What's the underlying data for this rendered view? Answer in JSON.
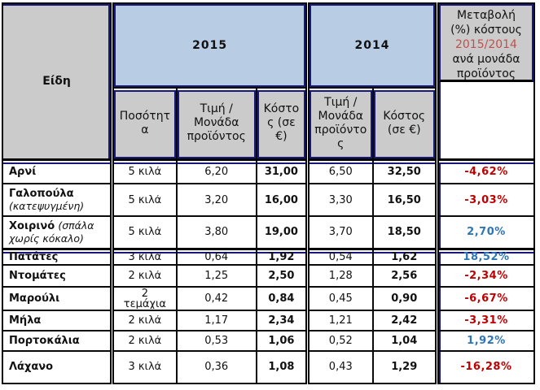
{
  "table": {
    "headers": {
      "items": "Είδη",
      "year_2015": "2015",
      "year_2014": "2014",
      "quantity": "Ποσότητα",
      "price_per_unit": "Τιμή / Μονάδα προϊόντος",
      "cost_eur": "Κόστος (σε €)",
      "change_prefix": "Μεταβολή (%) κόστους",
      "change_ratio": "2015/2014",
      "change_suffix": "ανά μονάδα προϊόντος"
    },
    "groups": [
      {
        "rows": [
          {
            "name": "Αρνί",
            "note": "",
            "qty": "5 κιλά",
            "price_2015": "6,20",
            "cost_2015": "31,00",
            "price_2014": "6,50",
            "cost_2014": "32,50",
            "change": "-4,62%",
            "trend": "negative"
          },
          {
            "name": "Γαλοπούλα",
            "note": "(κατεψυγμένη)",
            "qty": "5 κιλά",
            "price_2015": "3,20",
            "cost_2015": "16,00",
            "price_2014": "3,30",
            "cost_2014": "16,50",
            "change": "-3,03%",
            "trend": "negative"
          },
          {
            "name": "Χοιρινό",
            "note": "(σπάλα χωρίς κόκαλο)",
            "qty": "5 κιλά",
            "price_2015": "3,80",
            "cost_2015": "19,00",
            "price_2014": "3,70",
            "cost_2014": "18,50",
            "change": "2,70%",
            "trend": "positive"
          }
        ]
      },
      {
        "rows": [
          {
            "name": "Πατάτες",
            "note": "",
            "qty": "3 κιλά",
            "price_2015": "0,64",
            "cost_2015": "1,92",
            "price_2014": "0,54",
            "cost_2014": "1,62",
            "change": "18,52%",
            "trend": "positive"
          },
          {
            "name": "Ντομάτες",
            "note": "",
            "qty": "2 κιλά",
            "price_2015": "1,25",
            "cost_2015": "2,50",
            "price_2014": "1,28",
            "cost_2014": "2,56",
            "change": "-2,34%",
            "trend": "negative"
          },
          {
            "name": "Μαρούλι",
            "note": "",
            "qty": "2 τεμάχια",
            "price_2015": "0,42",
            "cost_2015": "0,84",
            "price_2014": "0,45",
            "cost_2014": "0,90",
            "change": "-6,67%",
            "trend": "negative"
          },
          {
            "name": "Μήλα",
            "note": "",
            "qty": "2 κιλά",
            "price_2015": "1,17",
            "cost_2015": "2,34",
            "price_2014": "1,21",
            "cost_2014": "2,42",
            "change": "-3,31%",
            "trend": "negative"
          },
          {
            "name": "Πορτοκάλια",
            "note": "",
            "qty": "2 κιλά",
            "price_2015": "0,53",
            "cost_2015": "1,06",
            "price_2014": "0,52",
            "cost_2014": "1,04",
            "change": "1,92%",
            "trend": "positive"
          },
          {
            "name": "Λάχανο",
            "note": "",
            "qty": "3 κιλά",
            "price_2015": "0,36",
            "cost_2015": "1,08",
            "price_2014": "0,43",
            "cost_2014": "1,29",
            "change": "-16,28%",
            "trend": "negative"
          }
        ]
      }
    ]
  },
  "colors": {
    "header_blue_bg": "#B8CCE4",
    "header_grey_bg": "#CBCBCB",
    "accent_border_navy": "#181878",
    "grid_black": "#000000",
    "positive_change": "#2E75B6",
    "negative_change": "#C00000",
    "ratio_red": "#C0504D"
  }
}
